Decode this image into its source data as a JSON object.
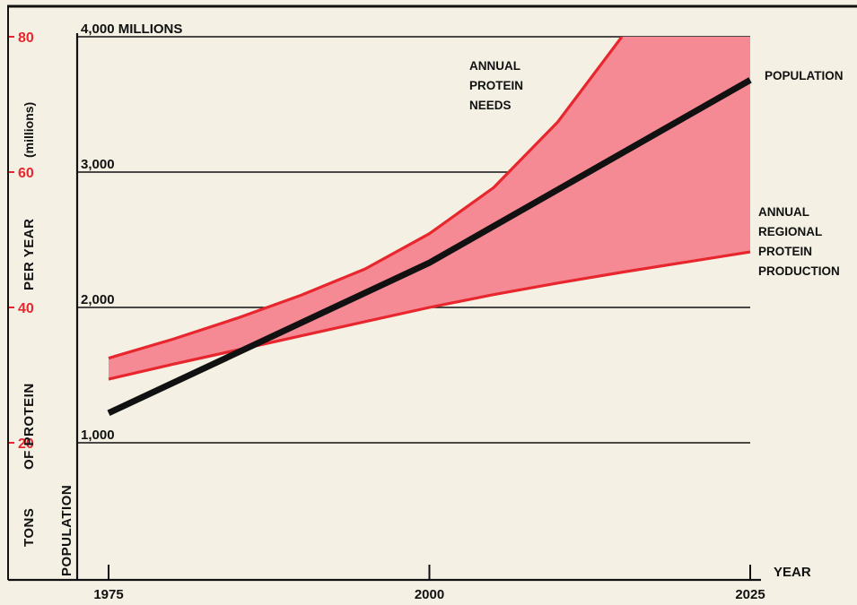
{
  "colors": {
    "background": "#f4f1e4",
    "protein": "#e8262e",
    "band_fill": "#f58a94",
    "population": "#111111",
    "axis": "#111111"
  },
  "chart_data": {
    "type": "line",
    "x_axis": {
      "label": "YEAR",
      "ticks": [
        1975,
        2000,
        2025
      ],
      "tick_labels": [
        "1975",
        "2000",
        "2025"
      ],
      "range": [
        1970,
        2025
      ]
    },
    "y_axis_left": {
      "label_main": "TONS OF PROTEIN PER YEAR",
      "label_parts": [
        "TONS",
        "OF PROTEIN",
        "PER YEAR"
      ],
      "label_unit": "(millions)",
      "ticks": [
        20,
        40,
        60,
        80
      ],
      "tick_labels": [
        "20",
        "40",
        "60",
        "80"
      ],
      "range": [
        0,
        80
      ]
    },
    "y_axis_inner": {
      "label": "POPULATION",
      "ticks": [
        1000,
        2000,
        3000,
        4000
      ],
      "tick_labels": [
        "1,000",
        "2,000",
        "3,000",
        "4,000 MILLIONS"
      ],
      "range": [
        0,
        4000
      ]
    },
    "grid": true,
    "series": [
      {
        "name": "POPULATION",
        "axis": "population",
        "x": [
          1975,
          2000,
          2025
        ],
        "y": [
          1220,
          2330,
          3680
        ]
      },
      {
        "name": "ANNUAL PROTEIN NEEDS",
        "axis": "protein",
        "x": [
          1975,
          1980,
          1985,
          1990,
          1995,
          2000,
          2005,
          2010,
          2015
        ],
        "y": [
          32.5,
          35.3,
          38.4,
          41.8,
          45.7,
          50.9,
          57.7,
          67.4,
          80
        ]
      },
      {
        "name": "ANNUAL REGIONAL PROTEIN PRODUCTION",
        "axis": "protein",
        "x": [
          1975,
          1980,
          1985,
          1990,
          1995,
          2000,
          2005,
          2010,
          2015,
          2020,
          2025
        ],
        "y": [
          29.4,
          31.6,
          33.7,
          35.8,
          37.9,
          40.0,
          41.9,
          43.6,
          45.2,
          46.7,
          48.2
        ]
      }
    ],
    "annotations": {
      "needs": [
        "ANNUAL",
        "PROTEIN",
        "NEEDS"
      ],
      "population": "POPULATION",
      "production": [
        "ANNUAL",
        "REGIONAL",
        "PROTEIN",
        "PRODUCTION"
      ]
    }
  }
}
